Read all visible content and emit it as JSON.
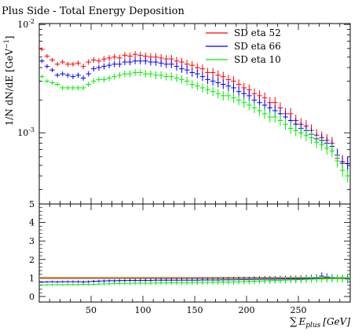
{
  "chart_data": {
    "title": "Plus Side - Total Energy Deposition",
    "top_panel": {
      "type": "scatter",
      "ylabel": "1/N dN/dE [GeV^-1]",
      "yscale": "log",
      "ylim": [
        0.00022,
        0.0102
      ],
      "y_ticks": [
        {
          "value": 0.001,
          "base": "10",
          "exp": "-3"
        },
        {
          "value": 0.01,
          "base": "10",
          "exp": "-2"
        }
      ],
      "legend_position": "top-right"
    },
    "bottom_panel": {
      "type": "line",
      "ylim": [
        -0.3,
        5.0
      ],
      "y_ticks": [
        0,
        1,
        2,
        3,
        4,
        5
      ],
      "reference_value": 1
    },
    "x_axis": {
      "xlabel_symbol": "∑",
      "xlabel_var": "E",
      "xlabel_sub": "plus",
      "xlabel_unit": "[GeV]",
      "xlim": [
        0,
        300
      ],
      "ticks": [
        50,
        100,
        150,
        200,
        250
      ]
    },
    "x": [
      2.5,
      7.5,
      12.5,
      17.5,
      22.5,
      27.5,
      32.5,
      37.5,
      42.5,
      47.5,
      52.5,
      57.5,
      62.5,
      67.5,
      72.5,
      77.5,
      82.5,
      87.5,
      92.5,
      97.5,
      102.5,
      107.5,
      112.5,
      117.5,
      122.5,
      127.5,
      132.5,
      137.5,
      142.5,
      147.5,
      152.5,
      157.5,
      162.5,
      167.5,
      172.5,
      177.5,
      182.5,
      187.5,
      192.5,
      197.5,
      202.5,
      207.5,
      212.5,
      217.5,
      222.5,
      227.5,
      232.5,
      237.5,
      242.5,
      247.5,
      252.5,
      257.5,
      262.5,
      267.5,
      272.5,
      277.5,
      282.5,
      287.5,
      292.5,
      297.5
    ],
    "series": [
      {
        "name": "SD eta 52",
        "color": "#ff0000",
        "values": [
          0.0059,
          0.0051,
          0.0047,
          0.0043,
          0.0045,
          0.0043,
          0.0043,
          0.0044,
          0.0041,
          0.0045,
          0.0047,
          0.0046,
          0.0048,
          0.0049,
          0.005,
          0.0049,
          0.0052,
          0.0051,
          0.0053,
          0.0052,
          0.0051,
          0.005,
          0.005,
          0.0049,
          0.0048,
          0.0048,
          0.0046,
          0.0045,
          0.0043,
          0.0042,
          0.004,
          0.0039,
          0.0036,
          0.0036,
          0.0034,
          0.0033,
          0.0031,
          0.003,
          0.0028,
          0.0026,
          0.0025,
          0.0023,
          0.0022,
          0.0021,
          0.0019,
          0.0019,
          0.0017,
          0.0015,
          0.0015,
          0.0013,
          0.0012,
          0.00115,
          0.00105,
          0.00095,
          0.0009,
          0.00085,
          0.0008,
          0.00058,
          0.00052,
          0.00052
        ]
      },
      {
        "name": "SD eta 66",
        "color": "#0000ff",
        "values": [
          0.0046,
          0.0041,
          0.0038,
          0.0034,
          0.0035,
          0.0034,
          0.0033,
          0.0034,
          0.0032,
          0.0035,
          0.0039,
          0.004,
          0.0041,
          0.0042,
          0.0043,
          0.0043,
          0.0045,
          0.0045,
          0.0046,
          0.0046,
          0.0046,
          0.0045,
          0.0045,
          0.0044,
          0.0043,
          0.0043,
          0.0041,
          0.0039,
          0.0038,
          0.0036,
          0.0035,
          0.0033,
          0.0031,
          0.003,
          0.0029,
          0.0028,
          0.0027,
          0.0026,
          0.0024,
          0.0023,
          0.0022,
          0.002,
          0.0019,
          0.0018,
          0.0017,
          0.0016,
          0.0015,
          0.0014,
          0.0013,
          0.0012,
          0.0011,
          0.00105,
          0.00097,
          0.00088,
          0.00085,
          0.0008,
          0.00075,
          0.00062,
          0.00054,
          0.00052
        ]
      },
      {
        "name": "SD eta 10",
        "color": "#00ee00",
        "values": [
          0.0033,
          0.003,
          0.0029,
          0.0028,
          0.0026,
          0.0026,
          0.0026,
          0.0026,
          0.0026,
          0.0028,
          0.003,
          0.0031,
          0.0031,
          0.0032,
          0.0033,
          0.0034,
          0.0035,
          0.0035,
          0.0036,
          0.0036,
          0.0035,
          0.0035,
          0.0034,
          0.0034,
          0.0033,
          0.0033,
          0.0032,
          0.0031,
          0.003,
          0.0028,
          0.0027,
          0.0026,
          0.0025,
          0.0024,
          0.0023,
          0.0022,
          0.0022,
          0.0021,
          0.002,
          0.0019,
          0.0018,
          0.0017,
          0.0016,
          0.0015,
          0.0014,
          0.0014,
          0.0013,
          0.0012,
          0.0011,
          0.00105,
          0.001,
          0.00095,
          0.0009,
          0.00082,
          0.00078,
          0.00072,
          0.00068,
          0.00055,
          0.00045,
          0.0004
        ]
      }
    ],
    "ratio_series": [
      {
        "name": "SD eta 52",
        "color": "#ff0000",
        "values": [
          1,
          1,
          1,
          1,
          1,
          1,
          1,
          1,
          1,
          1,
          1,
          1,
          1,
          1,
          1,
          1,
          1,
          1,
          1,
          1,
          1,
          1,
          1,
          1,
          1,
          1,
          1,
          1,
          1,
          1,
          1,
          1,
          1,
          1,
          1,
          1,
          1,
          1,
          1,
          1,
          1,
          1,
          1,
          1,
          1,
          1,
          1,
          1,
          1,
          1,
          1,
          1,
          1,
          1,
          1,
          1,
          1,
          1,
          1,
          1
        ]
      },
      {
        "name": "SD eta 66",
        "color": "#0000ff",
        "values": [
          0.78,
          0.79,
          0.8,
          0.79,
          0.8,
          0.8,
          0.8,
          0.8,
          0.79,
          0.8,
          0.82,
          0.83,
          0.84,
          0.85,
          0.85,
          0.86,
          0.86,
          0.87,
          0.87,
          0.87,
          0.87,
          0.87,
          0.88,
          0.88,
          0.88,
          0.88,
          0.88,
          0.88,
          0.88,
          0.88,
          0.88,
          0.89,
          0.89,
          0.89,
          0.89,
          0.9,
          0.9,
          0.9,
          0.91,
          0.91,
          0.91,
          0.92,
          0.92,
          0.93,
          0.93,
          0.93,
          0.94,
          0.94,
          0.95,
          0.95,
          0.96,
          0.97,
          0.98,
          1.0,
          1.1,
          1.05,
          1.0,
          0.98,
          0.97,
          0.95
        ]
      },
      {
        "name": "SD eta 10",
        "color": "#00ee00",
        "values": [
          0.62,
          0.63,
          0.63,
          0.64,
          0.63,
          0.64,
          0.64,
          0.64,
          0.65,
          0.65,
          0.66,
          0.67,
          0.68,
          0.69,
          0.7,
          0.7,
          0.71,
          0.71,
          0.72,
          0.72,
          0.72,
          0.72,
          0.73,
          0.73,
          0.73,
          0.74,
          0.74,
          0.74,
          0.74,
          0.75,
          0.75,
          0.76,
          0.76,
          0.77,
          0.77,
          0.78,
          0.78,
          0.79,
          0.8,
          0.8,
          0.81,
          0.82,
          0.83,
          0.84,
          0.85,
          0.86,
          0.87,
          0.88,
          0.89,
          0.9,
          0.91,
          0.92,
          0.93,
          0.94,
          0.95,
          0.96,
          0.97,
          0.97,
          0.97,
          0.98
        ]
      }
    ]
  }
}
